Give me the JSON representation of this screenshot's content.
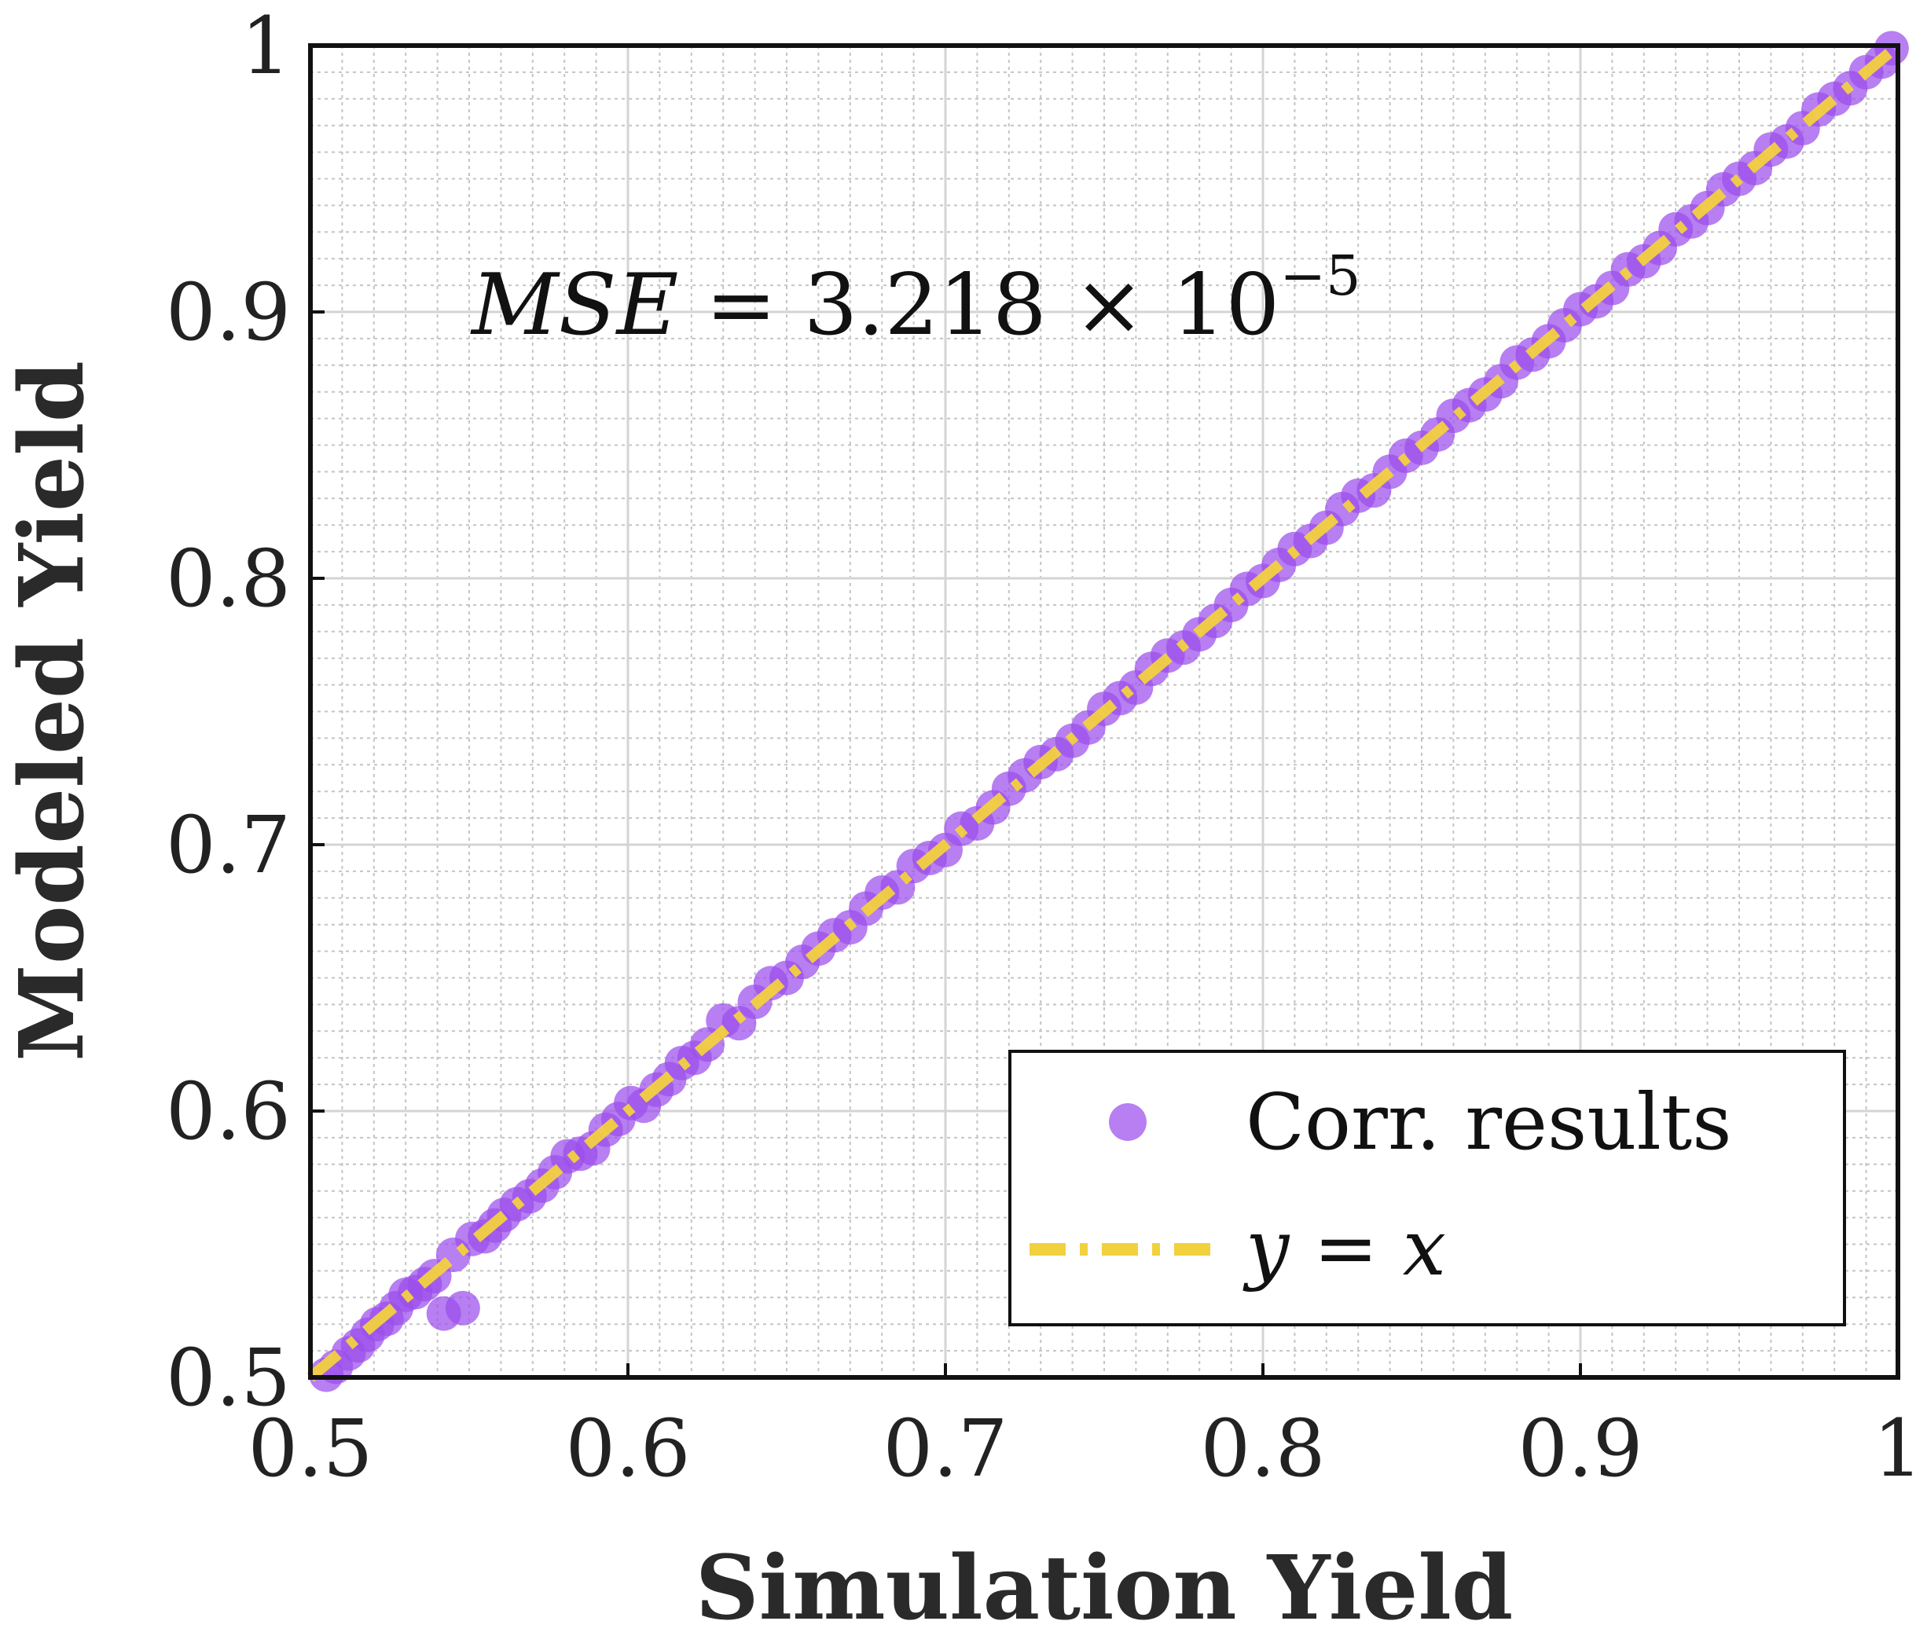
{
  "chart_data": {
    "type": "scatter",
    "title": "",
    "xlabel": "Simulation Yield",
    "ylabel": "Modeled Yield",
    "xlim": [
      0.5,
      1
    ],
    "ylim": [
      0.5,
      1
    ],
    "xticks": [
      "0.5",
      "0.6",
      "0.7",
      "0.8",
      "0.9",
      "1"
    ],
    "yticks": [
      "0.5",
      "0.6",
      "0.7",
      "0.8",
      "0.9",
      "1"
    ],
    "grid": true,
    "minor_grid": true,
    "legend_position": "bottom-right",
    "annotation": {
      "mse_lhs": "MSE",
      "mse_eq": " = 3.218 × 10",
      "mse_exp": "−5"
    },
    "series": [
      {
        "name": "Corr. results",
        "kind": "scatter",
        "color": "#9B4DEB",
        "points": [
          [
            0.505,
            0.501
          ],
          [
            0.508,
            0.504
          ],
          [
            0.512,
            0.509
          ],
          [
            0.515,
            0.512
          ],
          [
            0.518,
            0.516
          ],
          [
            0.521,
            0.52
          ],
          [
            0.524,
            0.522
          ],
          [
            0.527,
            0.526
          ],
          [
            0.53,
            0.531
          ],
          [
            0.533,
            0.532
          ],
          [
            0.536,
            0.535
          ],
          [
            0.539,
            0.538
          ],
          [
            0.542,
            0.524
          ],
          [
            0.545,
            0.546
          ],
          [
            0.548,
            0.526
          ],
          [
            0.551,
            0.552
          ],
          [
            0.555,
            0.553
          ],
          [
            0.558,
            0.557
          ],
          [
            0.561,
            0.561
          ],
          [
            0.565,
            0.565
          ],
          [
            0.569,
            0.568
          ],
          [
            0.573,
            0.572
          ],
          [
            0.577,
            0.577
          ],
          [
            0.581,
            0.583
          ],
          [
            0.585,
            0.584
          ],
          [
            0.589,
            0.586
          ],
          [
            0.593,
            0.593
          ],
          [
            0.597,
            0.597
          ],
          [
            0.601,
            0.603
          ],
          [
            0.605,
            0.602
          ],
          [
            0.609,
            0.608
          ],
          [
            0.613,
            0.612
          ],
          [
            0.617,
            0.618
          ],
          [
            0.621,
            0.62
          ],
          [
            0.625,
            0.625
          ],
          [
            0.63,
            0.634
          ],
          [
            0.635,
            0.633
          ],
          [
            0.64,
            0.641
          ],
          [
            0.645,
            0.648
          ],
          [
            0.65,
            0.65
          ],
          [
            0.655,
            0.656
          ],
          [
            0.66,
            0.661
          ],
          [
            0.665,
            0.666
          ],
          [
            0.67,
            0.669
          ],
          [
            0.675,
            0.676
          ],
          [
            0.68,
            0.682
          ],
          [
            0.685,
            0.684
          ],
          [
            0.69,
            0.692
          ],
          [
            0.695,
            0.695
          ],
          [
            0.7,
            0.698
          ],
          [
            0.705,
            0.706
          ],
          [
            0.71,
            0.708
          ],
          [
            0.715,
            0.714
          ],
          [
            0.72,
            0.721
          ],
          [
            0.725,
            0.726
          ],
          [
            0.73,
            0.731
          ],
          [
            0.735,
            0.734
          ],
          [
            0.74,
            0.739
          ],
          [
            0.745,
            0.744
          ],
          [
            0.75,
            0.751
          ],
          [
            0.755,
            0.755
          ],
          [
            0.76,
            0.759
          ],
          [
            0.765,
            0.766
          ],
          [
            0.77,
            0.771
          ],
          [
            0.775,
            0.774
          ],
          [
            0.78,
            0.779
          ],
          [
            0.785,
            0.784
          ],
          [
            0.79,
            0.79
          ],
          [
            0.795,
            0.796
          ],
          [
            0.8,
            0.799
          ],
          [
            0.805,
            0.805
          ],
          [
            0.81,
            0.811
          ],
          [
            0.815,
            0.814
          ],
          [
            0.82,
            0.819
          ],
          [
            0.825,
            0.826
          ],
          [
            0.83,
            0.831
          ],
          [
            0.835,
            0.833
          ],
          [
            0.84,
            0.84
          ],
          [
            0.845,
            0.846
          ],
          [
            0.85,
            0.849
          ],
          [
            0.855,
            0.854
          ],
          [
            0.86,
            0.861
          ],
          [
            0.865,
            0.865
          ],
          [
            0.87,
            0.869
          ],
          [
            0.875,
            0.874
          ],
          [
            0.88,
            0.881
          ],
          [
            0.885,
            0.884
          ],
          [
            0.89,
            0.889
          ],
          [
            0.895,
            0.895
          ],
          [
            0.9,
            0.901
          ],
          [
            0.905,
            0.904
          ],
          [
            0.91,
            0.909
          ],
          [
            0.915,
            0.916
          ],
          [
            0.92,
            0.919
          ],
          [
            0.925,
            0.924
          ],
          [
            0.93,
            0.931
          ],
          [
            0.935,
            0.934
          ],
          [
            0.94,
            0.939
          ],
          [
            0.945,
            0.946
          ],
          [
            0.95,
            0.95
          ],
          [
            0.955,
            0.954
          ],
          [
            0.96,
            0.961
          ],
          [
            0.965,
            0.964
          ],
          [
            0.97,
            0.969
          ],
          [
            0.975,
            0.976
          ],
          [
            0.98,
            0.98
          ],
          [
            0.985,
            0.984
          ],
          [
            0.99,
            0.99
          ],
          [
            0.995,
            0.994
          ],
          [
            0.998,
            0.999
          ]
        ]
      },
      {
        "name": "y = x",
        "kind": "line",
        "style": "dash-dot",
        "color": "#F2D13F",
        "x": [
          0.5,
          1
        ],
        "y": [
          0.5,
          1
        ]
      }
    ]
  }
}
